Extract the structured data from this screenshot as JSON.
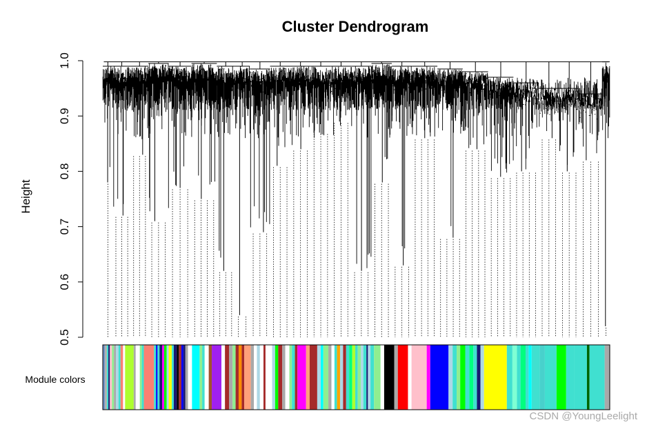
{
  "chart_data": {
    "type": "dendrogram",
    "title": "Cluster Dendrogram",
    "ylabel": "Height",
    "xlabel": "",
    "ylim": [
      0.5,
      1.0
    ],
    "yticks": [
      0.5,
      0.6,
      0.7,
      0.8,
      0.9,
      1.0
    ],
    "ytick_labels": [
      "0.5",
      "0.6",
      "0.7",
      "0.8",
      "0.9",
      "1.0"
    ],
    "color_bar_label": "Module colors",
    "top_merge_height": 0.998,
    "branch_cut_lines": "dotted",
    "branches": [
      {
        "start": 0.0,
        "end": 0.02,
        "merge": 0.99,
        "min": 0.78
      },
      {
        "start": 0.02,
        "end": 0.055,
        "merge": 0.99,
        "min": 0.72
      },
      {
        "start": 0.055,
        "end": 0.09,
        "merge": 0.99,
        "min": 0.83
      },
      {
        "start": 0.09,
        "end": 0.13,
        "merge": 0.995,
        "min": 0.71
      },
      {
        "start": 0.13,
        "end": 0.175,
        "merge": 0.99,
        "min": 0.77
      },
      {
        "start": 0.175,
        "end": 0.225,
        "merge": 0.995,
        "min": 0.75
      },
      {
        "start": 0.225,
        "end": 0.26,
        "merge": 0.99,
        "min": 0.62
      },
      {
        "start": 0.26,
        "end": 0.29,
        "merge": 0.99,
        "min": 0.54
      },
      {
        "start": 0.29,
        "end": 0.33,
        "merge": 0.985,
        "min": 0.69
      },
      {
        "start": 0.33,
        "end": 0.37,
        "merge": 0.99,
        "min": 0.81
      },
      {
        "start": 0.37,
        "end": 0.41,
        "merge": 0.99,
        "min": 0.84
      },
      {
        "start": 0.41,
        "end": 0.45,
        "merge": 0.99,
        "min": 0.87
      },
      {
        "start": 0.45,
        "end": 0.49,
        "merge": 0.99,
        "min": 0.89
      },
      {
        "start": 0.49,
        "end": 0.53,
        "merge": 0.99,
        "min": 0.62
      },
      {
        "start": 0.53,
        "end": 0.57,
        "merge": 0.995,
        "min": 0.78
      },
      {
        "start": 0.57,
        "end": 0.61,
        "merge": 0.99,
        "min": 0.63
      },
      {
        "start": 0.61,
        "end": 0.66,
        "merge": 0.99,
        "min": 0.86
      },
      {
        "start": 0.66,
        "end": 0.71,
        "merge": 0.985,
        "min": 0.68
      },
      {
        "start": 0.71,
        "end": 0.76,
        "merge": 0.98,
        "min": 0.84
      },
      {
        "start": 0.76,
        "end": 0.81,
        "merge": 0.97,
        "min": 0.79
      },
      {
        "start": 0.81,
        "end": 0.86,
        "merge": 0.96,
        "min": 0.8
      },
      {
        "start": 0.86,
        "end": 0.9,
        "merge": 0.95,
        "min": 0.86
      },
      {
        "start": 0.9,
        "end": 0.94,
        "merge": 0.95,
        "min": 0.8
      },
      {
        "start": 0.94,
        "end": 0.985,
        "merge": 0.94,
        "min": 0.82
      },
      {
        "start": 0.985,
        "end": 1.0,
        "merge": 0.998,
        "min": 0.52
      }
    ],
    "module_color_segments": [
      {
        "start": 0.0,
        "end": 0.004,
        "color": "#6b8ec6"
      },
      {
        "start": 0.004,
        "end": 0.008,
        "color": "#b0b0b0"
      },
      {
        "start": 0.008,
        "end": 0.011,
        "color": "#40e0d0"
      },
      {
        "start": 0.011,
        "end": 0.014,
        "color": "#191970"
      },
      {
        "start": 0.014,
        "end": 0.018,
        "color": "#ffc0cb"
      },
      {
        "start": 0.018,
        "end": 0.022,
        "color": "#90ee90"
      },
      {
        "start": 0.022,
        "end": 0.026,
        "color": "#a9a9a9"
      },
      {
        "start": 0.026,
        "end": 0.031,
        "color": "#add8e6"
      },
      {
        "start": 0.031,
        "end": 0.035,
        "color": "#40e0d0"
      },
      {
        "start": 0.035,
        "end": 0.04,
        "color": "#fa8072"
      },
      {
        "start": 0.04,
        "end": 0.044,
        "color": "#ffffff"
      },
      {
        "start": 0.044,
        "end": 0.061,
        "color": "#adff2f"
      },
      {
        "start": 0.061,
        "end": 0.065,
        "color": "#a9a9a9"
      },
      {
        "start": 0.065,
        "end": 0.073,
        "color": "#ffffff"
      },
      {
        "start": 0.073,
        "end": 0.077,
        "color": "#90ee90"
      },
      {
        "start": 0.077,
        "end": 0.081,
        "color": "#40e0d0"
      },
      {
        "start": 0.081,
        "end": 0.101,
        "color": "#fa8072"
      },
      {
        "start": 0.101,
        "end": 0.105,
        "color": "#40e0d0"
      },
      {
        "start": 0.105,
        "end": 0.108,
        "color": "#0000ff"
      },
      {
        "start": 0.108,
        "end": 0.112,
        "color": "#40e0d0"
      },
      {
        "start": 0.112,
        "end": 0.117,
        "color": "#191970"
      },
      {
        "start": 0.117,
        "end": 0.121,
        "color": "#ff00ff"
      },
      {
        "start": 0.121,
        "end": 0.126,
        "color": "#00ff00"
      },
      {
        "start": 0.126,
        "end": 0.13,
        "color": "#add8e6"
      },
      {
        "start": 0.13,
        "end": 0.136,
        "color": "#ffff00"
      },
      {
        "start": 0.136,
        "end": 0.14,
        "color": "#40e0d0"
      },
      {
        "start": 0.14,
        "end": 0.146,
        "color": "#191970"
      },
      {
        "start": 0.146,
        "end": 0.15,
        "color": "#000000"
      },
      {
        "start": 0.15,
        "end": 0.155,
        "color": "#a52a2a"
      },
      {
        "start": 0.155,
        "end": 0.159,
        "color": "#0000ff"
      },
      {
        "start": 0.159,
        "end": 0.163,
        "color": "#191970"
      },
      {
        "start": 0.163,
        "end": 0.168,
        "color": "#a9a9a9"
      },
      {
        "start": 0.168,
        "end": 0.176,
        "color": "#ffffff"
      },
      {
        "start": 0.176,
        "end": 0.191,
        "color": "#00ffff"
      },
      {
        "start": 0.191,
        "end": 0.196,
        "color": "#90ee90"
      },
      {
        "start": 0.196,
        "end": 0.201,
        "color": "#40e0d0"
      },
      {
        "start": 0.201,
        "end": 0.209,
        "color": "#ffffff"
      },
      {
        "start": 0.209,
        "end": 0.215,
        "color": "#a0522d"
      },
      {
        "start": 0.215,
        "end": 0.234,
        "color": "#a020f0"
      },
      {
        "start": 0.234,
        "end": 0.241,
        "color": "#ffffff"
      },
      {
        "start": 0.241,
        "end": 0.249,
        "color": "#a52a2a"
      },
      {
        "start": 0.249,
        "end": 0.256,
        "color": "#a9a9a9"
      },
      {
        "start": 0.256,
        "end": 0.262,
        "color": "#90ee90"
      },
      {
        "start": 0.262,
        "end": 0.268,
        "color": "#a52a2a"
      },
      {
        "start": 0.268,
        "end": 0.274,
        "color": "#ff8c00"
      },
      {
        "start": 0.274,
        "end": 0.279,
        "color": "#a52a2a"
      },
      {
        "start": 0.279,
        "end": 0.292,
        "color": "#ffa07a"
      },
      {
        "start": 0.292,
        "end": 0.298,
        "color": "#a9a9a9"
      },
      {
        "start": 0.298,
        "end": 0.304,
        "color": "#ffffff"
      },
      {
        "start": 0.304,
        "end": 0.31,
        "color": "#add8e6"
      },
      {
        "start": 0.31,
        "end": 0.317,
        "color": "#ffffff"
      },
      {
        "start": 0.317,
        "end": 0.321,
        "color": "#a52a2a"
      },
      {
        "start": 0.321,
        "end": 0.334,
        "color": "#ffffff"
      },
      {
        "start": 0.334,
        "end": 0.34,
        "color": "#add8e6"
      },
      {
        "start": 0.34,
        "end": 0.346,
        "color": "#00ff00"
      },
      {
        "start": 0.346,
        "end": 0.354,
        "color": "#a52a2a"
      },
      {
        "start": 0.354,
        "end": 0.36,
        "color": "#a9a9a9"
      },
      {
        "start": 0.36,
        "end": 0.368,
        "color": "#ffffff"
      },
      {
        "start": 0.368,
        "end": 0.373,
        "color": "#90ee90"
      },
      {
        "start": 0.373,
        "end": 0.379,
        "color": "#40e0d0"
      },
      {
        "start": 0.379,
        "end": 0.384,
        "color": "#a52a2a"
      },
      {
        "start": 0.384,
        "end": 0.401,
        "color": "#ff00ff"
      },
      {
        "start": 0.401,
        "end": 0.408,
        "color": "#ffa07a"
      },
      {
        "start": 0.408,
        "end": 0.423,
        "color": "#a52a2a"
      },
      {
        "start": 0.423,
        "end": 0.43,
        "color": "#add8e6"
      },
      {
        "start": 0.43,
        "end": 0.435,
        "color": "#00ffff"
      },
      {
        "start": 0.435,
        "end": 0.445,
        "color": "#90ee90"
      },
      {
        "start": 0.445,
        "end": 0.451,
        "color": "#a9a9a9"
      },
      {
        "start": 0.451,
        "end": 0.457,
        "color": "#ffffff"
      },
      {
        "start": 0.457,
        "end": 0.462,
        "color": "#40e0d0"
      },
      {
        "start": 0.462,
        "end": 0.468,
        "color": "#ffa500"
      },
      {
        "start": 0.468,
        "end": 0.474,
        "color": "#add8e6"
      },
      {
        "start": 0.474,
        "end": 0.48,
        "color": "#a52a2a"
      },
      {
        "start": 0.48,
        "end": 0.486,
        "color": "#40e0d0"
      },
      {
        "start": 0.486,
        "end": 0.492,
        "color": "#00ff7f"
      },
      {
        "start": 0.492,
        "end": 0.498,
        "color": "#adff2f"
      },
      {
        "start": 0.498,
        "end": 0.503,
        "color": "#40e0d0"
      },
      {
        "start": 0.503,
        "end": 0.509,
        "color": "#90ee90"
      },
      {
        "start": 0.509,
        "end": 0.514,
        "color": "#add8e6"
      },
      {
        "start": 0.514,
        "end": 0.52,
        "color": "#40e0d0"
      },
      {
        "start": 0.52,
        "end": 0.523,
        "color": "#191970"
      },
      {
        "start": 0.523,
        "end": 0.528,
        "color": "#add8e6"
      },
      {
        "start": 0.528,
        "end": 0.535,
        "color": "#40e0d0"
      },
      {
        "start": 0.535,
        "end": 0.548,
        "color": "#90ee90"
      },
      {
        "start": 0.548,
        "end": 0.555,
        "color": "#ffffff"
      },
      {
        "start": 0.555,
        "end": 0.575,
        "color": "#000000"
      },
      {
        "start": 0.575,
        "end": 0.582,
        "color": "#a9a9a9"
      },
      {
        "start": 0.582,
        "end": 0.602,
        "color": "#ff0000"
      },
      {
        "start": 0.602,
        "end": 0.609,
        "color": "#ffffff"
      },
      {
        "start": 0.609,
        "end": 0.639,
        "color": "#ffc0cb"
      },
      {
        "start": 0.639,
        "end": 0.646,
        "color": "#ff00ff"
      },
      {
        "start": 0.646,
        "end": 0.682,
        "color": "#0000ff"
      },
      {
        "start": 0.682,
        "end": 0.69,
        "color": "#add8e6"
      },
      {
        "start": 0.69,
        "end": 0.698,
        "color": "#40e0d0"
      },
      {
        "start": 0.698,
        "end": 0.705,
        "color": "#90ee90"
      },
      {
        "start": 0.705,
        "end": 0.715,
        "color": "#00ff00"
      },
      {
        "start": 0.715,
        "end": 0.723,
        "color": "#40e0d0"
      },
      {
        "start": 0.723,
        "end": 0.731,
        "color": "#00ff7f"
      },
      {
        "start": 0.731,
        "end": 0.738,
        "color": "#40e0d0"
      },
      {
        "start": 0.738,
        "end": 0.745,
        "color": "#191970"
      },
      {
        "start": 0.745,
        "end": 0.752,
        "color": "#add8e6"
      },
      {
        "start": 0.752,
        "end": 0.797,
        "color": "#ffff00"
      },
      {
        "start": 0.797,
        "end": 0.808,
        "color": "#40e0d0"
      },
      {
        "start": 0.808,
        "end": 0.817,
        "color": "#7fffd4"
      },
      {
        "start": 0.817,
        "end": 0.824,
        "color": "#40e0d0"
      },
      {
        "start": 0.824,
        "end": 0.834,
        "color": "#00ff7f"
      },
      {
        "start": 0.834,
        "end": 0.84,
        "color": "#40e0d0"
      },
      {
        "start": 0.84,
        "end": 0.846,
        "color": "#00ffff"
      },
      {
        "start": 0.846,
        "end": 0.862,
        "color": "#40e0d0"
      },
      {
        "start": 0.862,
        "end": 0.872,
        "color": "#48d1cc"
      },
      {
        "start": 0.872,
        "end": 0.895,
        "color": "#40e0d0"
      },
      {
        "start": 0.895,
        "end": 0.914,
        "color": "#00ff00"
      },
      {
        "start": 0.914,
        "end": 0.93,
        "color": "#40e0d0"
      },
      {
        "start": 0.93,
        "end": 0.955,
        "color": "#40e0d0"
      },
      {
        "start": 0.955,
        "end": 0.96,
        "color": "#006400"
      },
      {
        "start": 0.96,
        "end": 0.99,
        "color": "#40e0d0"
      },
      {
        "start": 0.99,
        "end": 1.0,
        "color": "#a9a9a9"
      }
    ]
  },
  "watermark": "CSDN @YoungLeelight"
}
